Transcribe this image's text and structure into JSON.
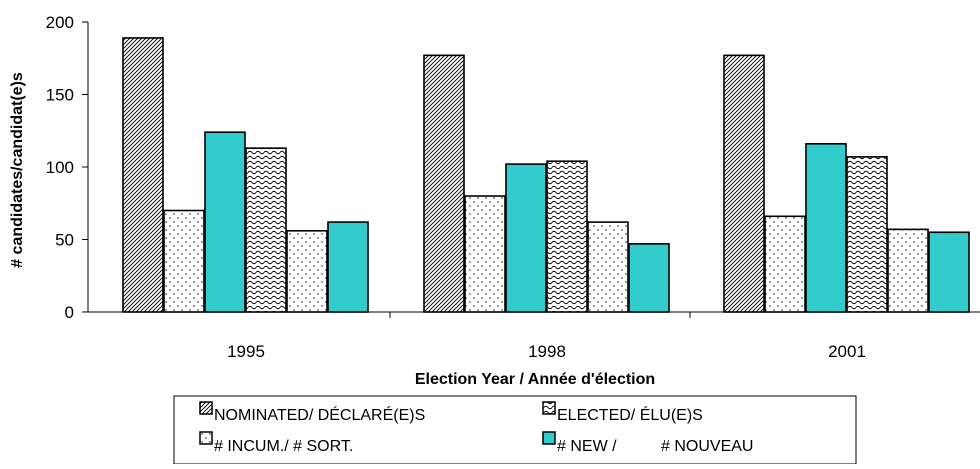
{
  "chart_data": {
    "type": "bar",
    "categories": [
      "1995",
      "1998",
      "2001"
    ],
    "series": [
      {
        "name": "NOMINATED/ DÉCLARÉ(E)S",
        "values": [
          189,
          177,
          177
        ],
        "pattern": "diagonal"
      },
      {
        "name": "ELECTED/ ÉLU(E)S",
        "values": [
          70,
          80,
          66
        ],
        "pattern": "dots"
      },
      {
        "name": "# NEW / # NOUVEAU",
        "values": [
          124,
          102,
          116
        ],
        "pattern": "solid"
      },
      {
        "name": "# INCUM./ # SORT.",
        "values": [
          113,
          104,
          107
        ],
        "pattern": "wave"
      },
      {
        "name": "ELECTED/ ÉLU(E)S",
        "values": [
          56,
          62,
          57
        ],
        "pattern": "dots"
      },
      {
        "name": "# NEW / # NOUVEAU",
        "values": [
          62,
          47,
          55
        ],
        "pattern": "solid"
      }
    ],
    "xlabel": "Election Year / Année  d'élection",
    "ylabel": "# candidates/candidat(e)s",
    "ylim": [
      0,
      200
    ],
    "yticks": [
      0,
      50,
      100,
      150,
      200
    ],
    "grid": false,
    "legend_position": "bottom",
    "legend": [
      {
        "label": "NOMINATED/ DÉCLARÉ(E)S",
        "pattern": "diagonal"
      },
      {
        "label": "ELECTED/ ÉLU(E)S",
        "pattern": "wave"
      },
      {
        "label": "# INCUM./ # SORT.",
        "pattern": "dots"
      },
      {
        "label": "# NEW /          # NOUVEAU",
        "pattern": "solid"
      }
    ],
    "colors": {
      "accent": "#33CCCC",
      "outline": "#000000",
      "background": "#FFFFFF"
    }
  }
}
